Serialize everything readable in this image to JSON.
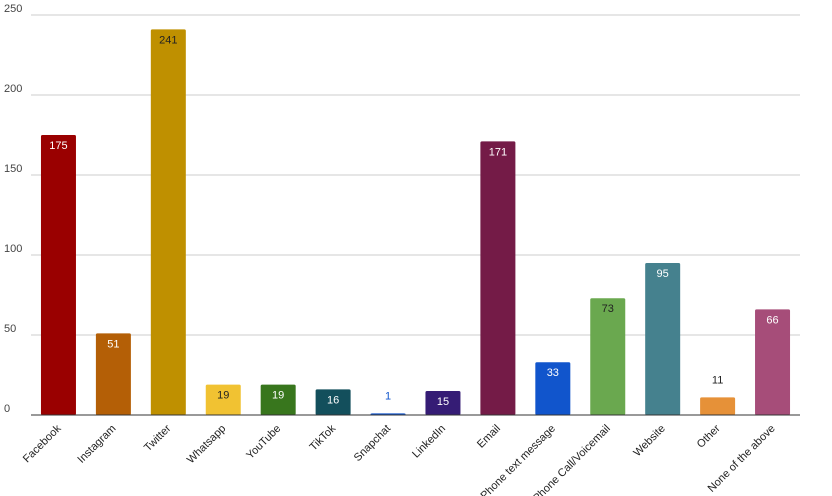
{
  "chart_data": {
    "type": "bar",
    "categories": [
      "Facebook",
      "Instagram",
      "Twitter",
      "Whatsapp",
      "YouTube",
      "TikTok",
      "Snapchat",
      "LinkedIn",
      "Email",
      "Phone text message",
      "Phone Call/Voicemail",
      "Website",
      "Other",
      "None of the above"
    ],
    "values": [
      175,
      51,
      241,
      19,
      19,
      16,
      1,
      15,
      171,
      33,
      73,
      95,
      11,
      66
    ],
    "colors": [
      "#9a0000",
      "#b45f06",
      "#bf9000",
      "#f1c232",
      "#38761d",
      "#134f5c",
      "#1155cc",
      "#351c75",
      "#741b47",
      "#1155cc",
      "#6aa84f",
      "#45818e",
      "#e69138",
      "#a64d79"
    ],
    "label_colors": [
      "#ffffff",
      "#ffffff",
      "#222222",
      "#222222",
      "#ffffff",
      "#ffffff",
      "#1155cc",
      "#ffffff",
      "#ffffff",
      "#ffffff",
      "#222222",
      "#ffffff",
      "#222222",
      "#ffffff"
    ],
    "ylim": [
      0,
      250
    ],
    "yticks": [
      0,
      50,
      100,
      150,
      200,
      250
    ],
    "grid": true,
    "legend": "none",
    "title": "",
    "xlabel": "",
    "ylabel": ""
  }
}
